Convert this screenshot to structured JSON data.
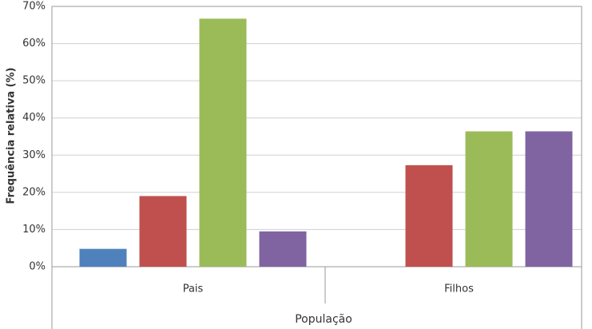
{
  "chart_data": {
    "type": "bar",
    "x_label": "População",
    "y_label": "Frequência relativa (%)",
    "categories": [
      "Pais",
      "Filhos"
    ],
    "series": [
      {
        "color": "#4f81bd",
        "values": [
          4.8,
          0
        ]
      },
      {
        "color": "#c0504d",
        "values": [
          19,
          27.3
        ]
      },
      {
        "color": "#9bbb59",
        "values": [
          66.7,
          36.4
        ]
      },
      {
        "color": "#8064a2",
        "values": [
          9.5,
          36.4
        ]
      }
    ],
    "ylim": [
      0,
      70
    ],
    "yticks": [
      {
        "value": 0,
        "label": "0%"
      },
      {
        "value": 10,
        "label": "10%"
      },
      {
        "value": 20,
        "label": "20%"
      },
      {
        "value": 30,
        "label": "30%"
      },
      {
        "value": 40,
        "label": "40%"
      },
      {
        "value": 50,
        "label": "50%"
      },
      {
        "value": 60,
        "label": "60%"
      },
      {
        "value": 70,
        "label": "70%"
      }
    ],
    "grid": true
  }
}
